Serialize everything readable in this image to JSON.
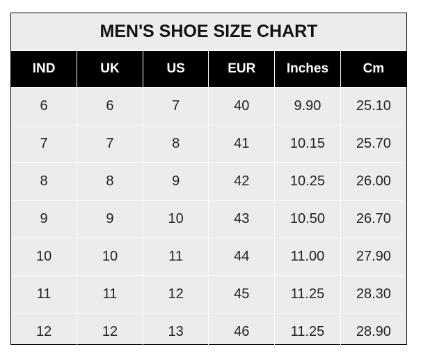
{
  "title": "MEN'S SHOE SIZE CHART",
  "columns": [
    "IND",
    "UK",
    "US",
    "EUR",
    "Inches",
    "Cm"
  ],
  "rows": [
    [
      "6",
      "6",
      "7",
      "40",
      "9.90",
      "25.10"
    ],
    [
      "7",
      "7",
      "8",
      "41",
      "10.15",
      "25.70"
    ],
    [
      "8",
      "8",
      "9",
      "42",
      "10.25",
      "26.00"
    ],
    [
      "9",
      "9",
      "10",
      "43",
      "10.50",
      "26.70"
    ],
    [
      "10",
      "10",
      "11",
      "44",
      "11.00",
      "27.90"
    ],
    [
      "11",
      "11",
      "12",
      "45",
      "11.25",
      "28.30"
    ],
    [
      "12",
      "12",
      "13",
      "46",
      "11.25",
      "28.90"
    ]
  ],
  "colors": {
    "header_bg": "#000000",
    "header_text": "#ffffff",
    "cell_bg": "#ececec"
  }
}
